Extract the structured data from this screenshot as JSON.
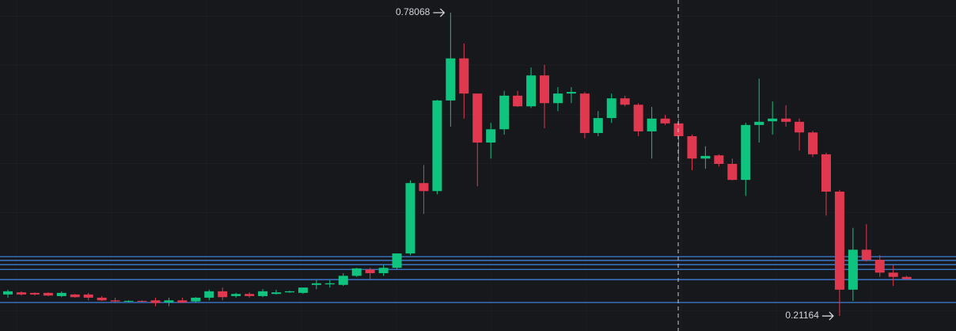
{
  "chart_data": {
    "type": "candlestick",
    "open": [
      0.252,
      0.256,
      0.255,
      0.255,
      0.249,
      0.252,
      0.252,
      0.246,
      0.241,
      0.239,
      0.24,
      0.241,
      0.237,
      0.241,
      0.239,
      0.246,
      0.258,
      0.249,
      0.253,
      0.249,
      0.253,
      0.256,
      0.255,
      0.27,
      0.271,
      0.27,
      0.287,
      0.299,
      0.292,
      0.302,
      0.329,
      0.461,
      0.446,
      0.616,
      0.695,
      0.629,
      0.537,
      0.562,
      0.625,
      0.605,
      0.663,
      0.611,
      0.629,
      0.629,
      0.555,
      0.583,
      0.62,
      0.608,
      0.558,
      0.582,
      0.573,
      0.549,
      0.507,
      0.513,
      0.497,
      0.467,
      0.57,
      0.577,
      0.582,
      0.576,
      0.556,
      0.515,
      0.445,
      0.261,
      0.336,
      0.317,
      0.293,
      0.285
    ],
    "high": [
      0.261,
      0.258,
      0.256,
      0.256,
      0.258,
      0.253,
      0.255,
      0.249,
      0.246,
      0.241,
      0.241,
      0.246,
      0.246,
      0.246,
      0.247,
      0.261,
      0.265,
      0.255,
      0.256,
      0.262,
      0.261,
      0.259,
      0.265,
      0.279,
      0.279,
      0.292,
      0.302,
      0.302,
      0.307,
      0.329,
      0.466,
      0.495,
      0.617,
      0.78068,
      0.723,
      0.629,
      0.574,
      0.634,
      0.634,
      0.678,
      0.683,
      0.641,
      0.641,
      0.632,
      0.596,
      0.629,
      0.625,
      0.611,
      0.604,
      0.589,
      0.582,
      0.552,
      0.53,
      0.515,
      0.507,
      0.574,
      0.657,
      0.614,
      0.607,
      0.582,
      0.559,
      0.518,
      0.448,
      0.377,
      0.384,
      0.326,
      0.307,
      0.287
    ],
    "low": [
      0.246,
      0.25,
      0.25,
      0.249,
      0.247,
      0.246,
      0.241,
      0.24,
      0.236,
      0.237,
      0.237,
      0.23,
      0.23,
      0.236,
      0.237,
      0.241,
      0.241,
      0.246,
      0.246,
      0.247,
      0.252,
      0.255,
      0.253,
      0.262,
      0.265,
      0.268,
      0.285,
      0.281,
      0.287,
      0.299,
      0.326,
      0.403,
      0.44,
      0.567,
      0.582,
      0.455,
      0.507,
      0.552,
      0.604,
      0.602,
      0.564,
      0.596,
      0.611,
      0.545,
      0.549,
      0.574,
      0.605,
      0.549,
      0.507,
      0.57,
      0.5,
      0.485,
      0.488,
      0.492,
      0.466,
      0.437,
      0.537,
      0.552,
      0.567,
      0.522,
      0.51,
      0.4,
      0.21164,
      0.24,
      0.314,
      0.285,
      0.268,
      0.28
    ],
    "close": [
      0.258,
      0.252,
      0.252,
      0.25,
      0.255,
      0.247,
      0.246,
      0.241,
      0.239,
      0.24,
      0.239,
      0.236,
      0.241,
      0.237,
      0.246,
      0.258,
      0.247,
      0.253,
      0.249,
      0.258,
      0.256,
      0.258,
      0.265,
      0.273,
      0.273,
      0.287,
      0.301,
      0.292,
      0.302,
      0.329,
      0.461,
      0.446,
      0.616,
      0.695,
      0.629,
      0.537,
      0.562,
      0.625,
      0.605,
      0.663,
      0.611,
      0.629,
      0.632,
      0.555,
      0.583,
      0.62,
      0.608,
      0.558,
      0.582,
      0.573,
      0.549,
      0.507,
      0.512,
      0.497,
      0.467,
      0.57,
      0.576,
      0.582,
      0.576,
      0.556,
      0.515,
      0.445,
      0.261,
      0.336,
      0.317,
      0.293,
      0.285,
      0.281
    ],
    "levels": [
      0.323,
      0.316,
      0.308,
      0.299,
      0.28,
      0.237
    ],
    "up_color": "#0fc47f",
    "down_color": "#e0394f",
    "level_color": "#3f7fd8",
    "ylim": [
      0.1835,
      0.8045
    ]
  }
}
